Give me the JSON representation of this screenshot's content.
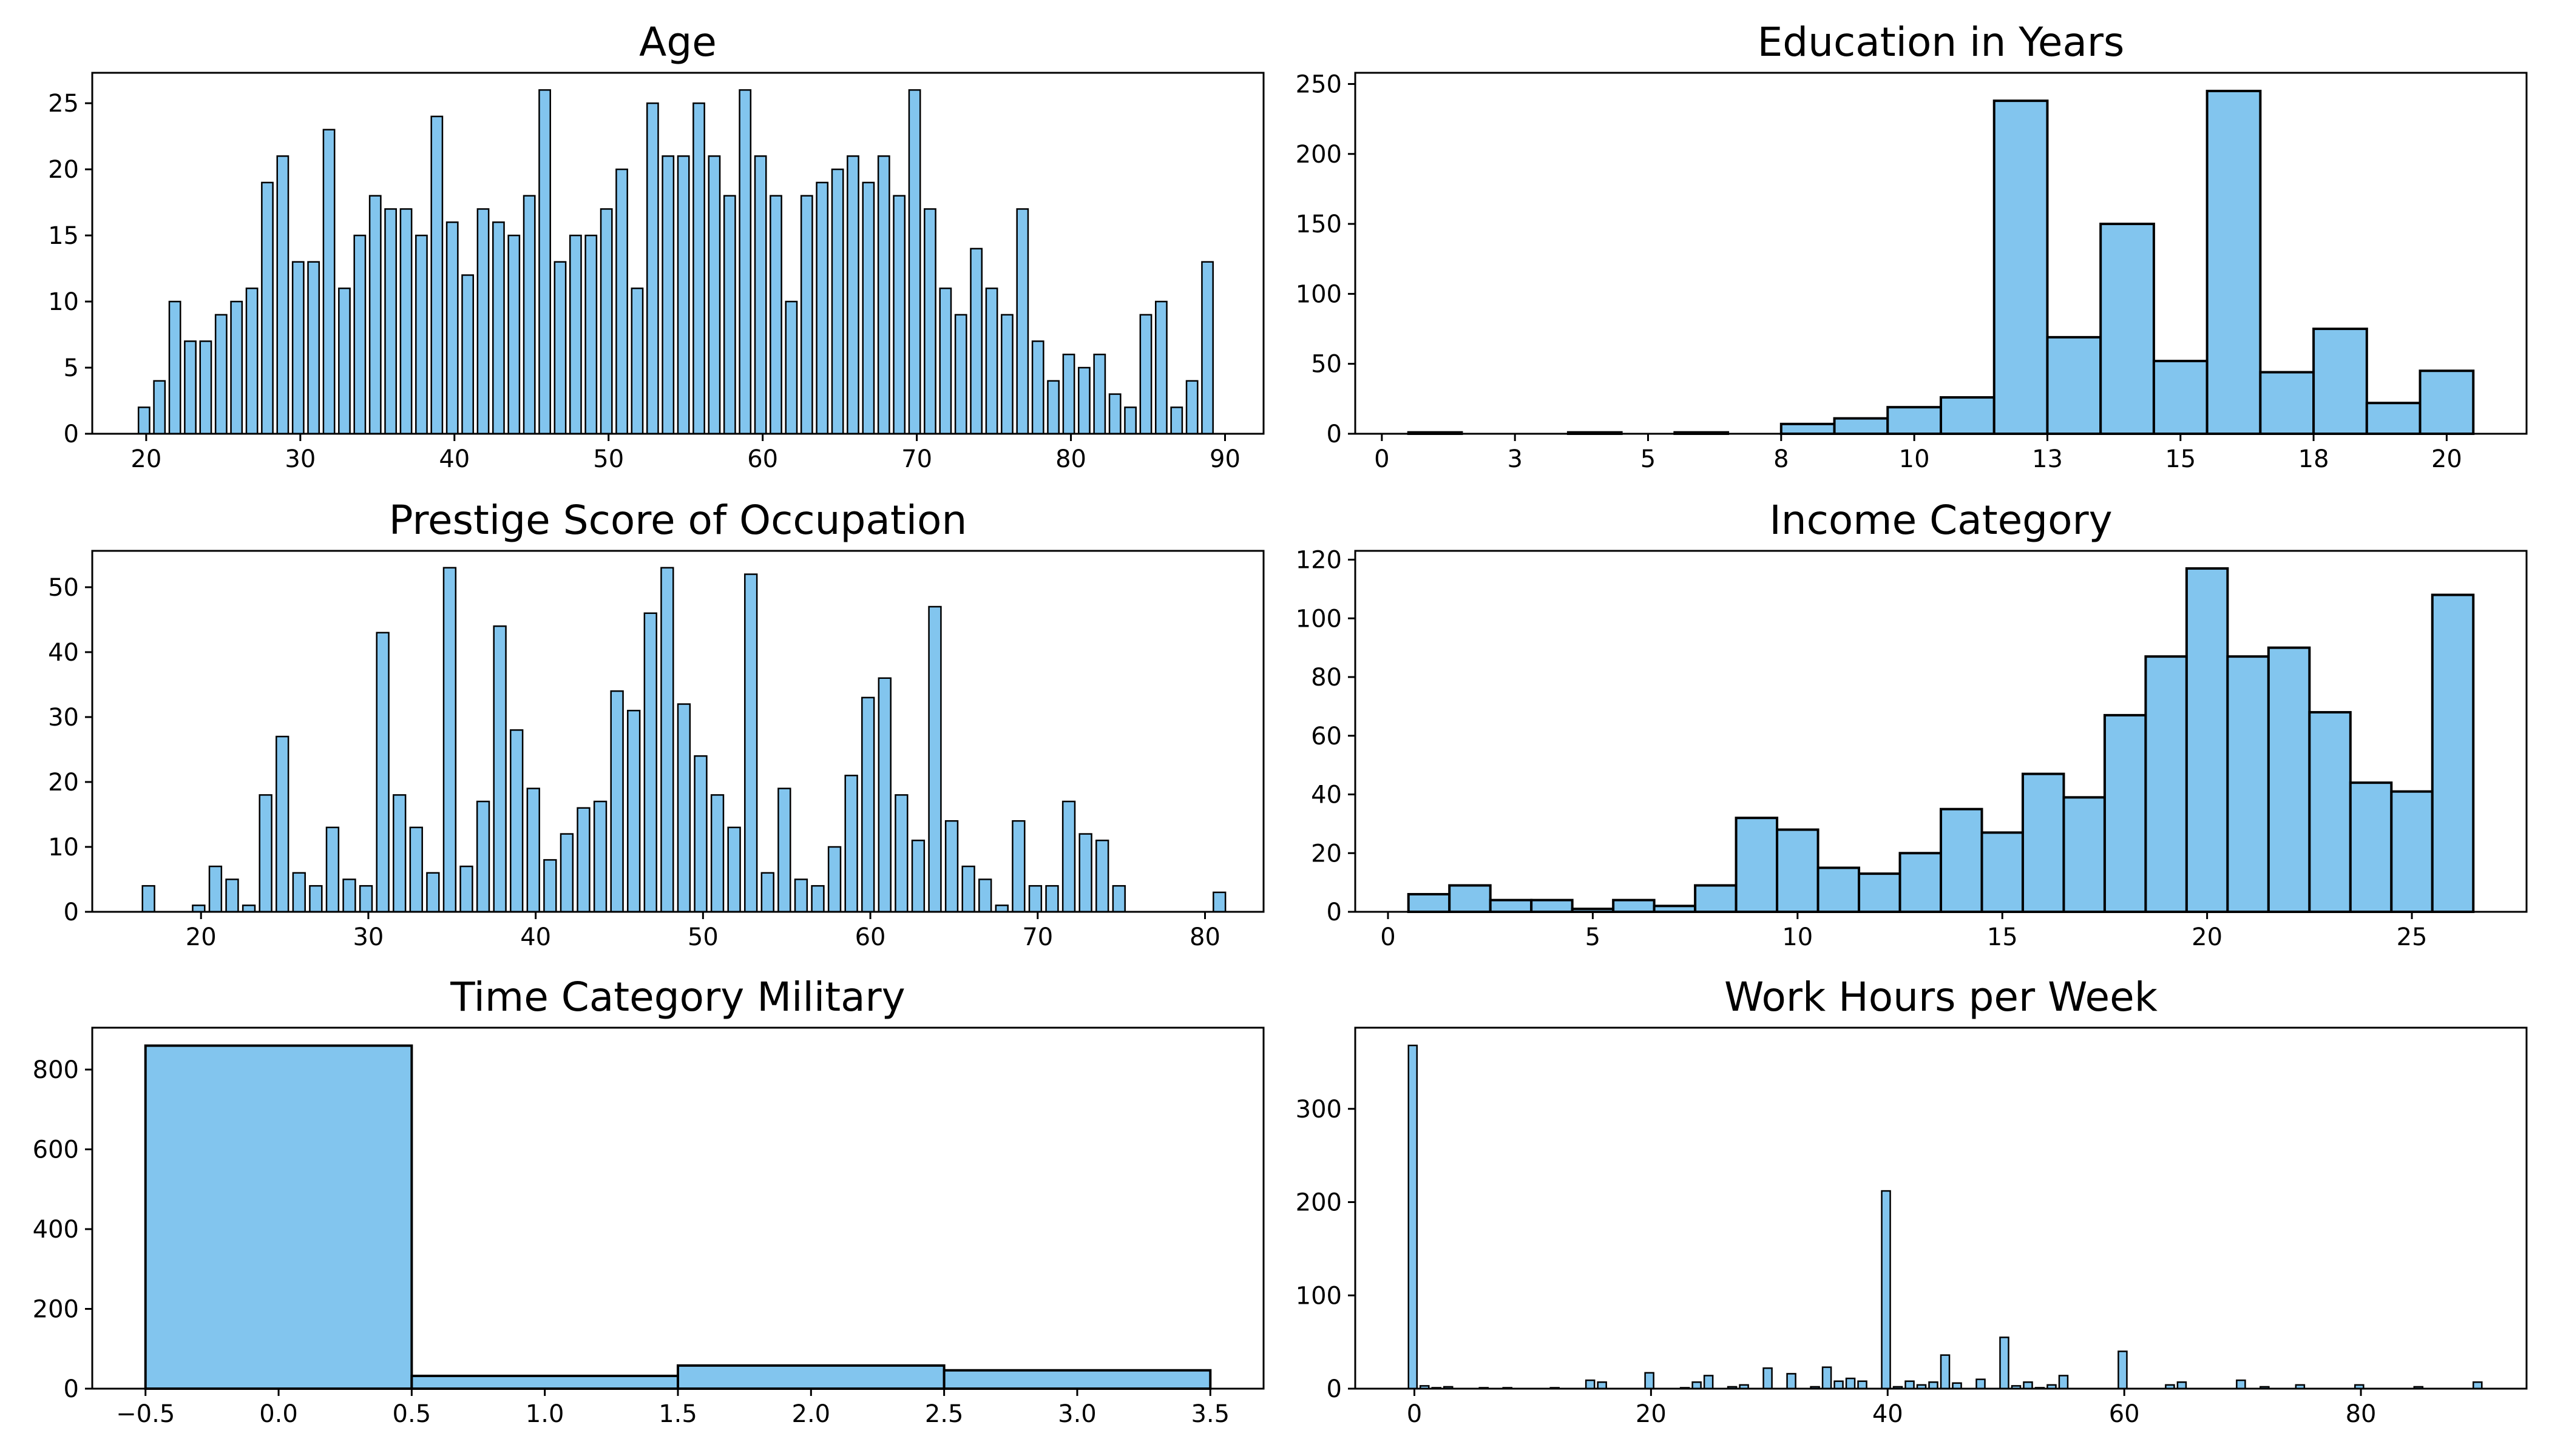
{
  "figure": {
    "bar_color": "#82C5EE",
    "edge_color": "#000000",
    "background": "#ffffff"
  },
  "chart_data": [
    {
      "type": "bar",
      "title": "Age",
      "xlim": [
        16.5,
        92.5
      ],
      "ylim": [
        0,
        27.3
      ],
      "xticks": [
        20,
        30,
        40,
        50,
        60,
        70,
        80,
        90
      ],
      "yticks": [
        0,
        5,
        10,
        15,
        20,
        25
      ],
      "bin_start": 19.5,
      "bin_width": 1,
      "values": [
        2,
        4,
        10,
        7,
        7,
        9,
        10,
        11,
        19,
        21,
        13,
        13,
        23,
        11,
        15,
        18,
        17,
        17,
        15,
        24,
        16,
        12,
        17,
        16,
        15,
        18,
        26,
        13,
        15,
        15,
        17,
        20,
        11,
        25,
        21,
        21,
        25,
        21,
        18,
        26,
        21,
        18,
        10,
        18,
        19,
        20,
        21,
        19,
        21,
        18,
        26,
        17,
        11,
        9,
        14,
        11,
        9,
        17,
        7,
        4,
        6,
        5,
        6,
        3,
        2,
        9,
        10,
        2,
        4,
        13
      ]
    },
    {
      "type": "bar",
      "title": "Education in Years",
      "xlim": [
        -0.5,
        21.5
      ],
      "ylim": [
        0,
        258
      ],
      "xticks": [
        0.0,
        2.5,
        5.0,
        7.5,
        10.0,
        12.5,
        15.0,
        17.5,
        20.0
      ],
      "yticks": [
        0,
        50,
        100,
        150,
        200,
        250
      ],
      "bin_start": 0.5,
      "bin_width": 1,
      "values": [
        1,
        0,
        0,
        1,
        0,
        1,
        0,
        7,
        11,
        19,
        26,
        238,
        69,
        150,
        52,
        245,
        44,
        75,
        22,
        45
      ]
    },
    {
      "type": "bar",
      "title": "Prestige Score of Occupation",
      "xlim": [
        13.5,
        83.5
      ],
      "ylim": [
        0,
        55.6
      ],
      "xticks": [
        20,
        30,
        40,
        50,
        60,
        70,
        80
      ],
      "yticks": [
        0,
        10,
        20,
        30,
        40,
        50
      ],
      "bin_start": 16.5,
      "bin_width": 1,
      "values": [
        4,
        0,
        0,
        1,
        7,
        5,
        1,
        18,
        27,
        6,
        4,
        13,
        5,
        4,
        43,
        18,
        13,
        6,
        53,
        7,
        17,
        44,
        28,
        19,
        8,
        12,
        16,
        17,
        34,
        31,
        46,
        53,
        32,
        24,
        18,
        13,
        52,
        6,
        19,
        5,
        4,
        10,
        21,
        33,
        36,
        18,
        11,
        47,
        14,
        7,
        5,
        1,
        14,
        4,
        4,
        17,
        12,
        11,
        4,
        0,
        0,
        0,
        0,
        0,
        3
      ]
    },
    {
      "type": "bar",
      "title": "Income Category",
      "xlim": [
        -0.8,
        27.8
      ],
      "ylim": [
        0,
        123
      ],
      "xticks": [
        0,
        5,
        10,
        15,
        20,
        25
      ],
      "yticks": [
        0,
        20,
        40,
        60,
        80,
        100,
        120
      ],
      "bin_start": 0.5,
      "bin_width": 1,
      "values": [
        6,
        9,
        4,
        4,
        1,
        4,
        2,
        9,
        32,
        28,
        15,
        13,
        20,
        35,
        27,
        47,
        39,
        67,
        87,
        117,
        87,
        90,
        68,
        44,
        41,
        108
      ]
    },
    {
      "type": "bar",
      "title": "Time Category Military",
      "xlim": [
        -0.7,
        3.7
      ],
      "ylim": [
        0,
        905
      ],
      "xticks": [
        -0.5,
        0.0,
        0.5,
        1.0,
        1.5,
        2.0,
        2.5,
        3.0,
        3.5
      ],
      "yticks": [
        0,
        200,
        400,
        600,
        800
      ],
      "bin_start": -0.5,
      "bin_width": 1,
      "values": [
        860,
        32,
        58,
        46
      ]
    },
    {
      "type": "bar",
      "title": "Work Hours per Week",
      "xlim": [
        -5,
        94
      ],
      "ylim": [
        0,
        387
      ],
      "xticks": [
        0,
        20,
        40,
        60,
        80
      ],
      "yticks": [
        0,
        100,
        200,
        300
      ],
      "bin_start": -0.5,
      "bin_width": 1,
      "values": [
        368,
        3,
        1,
        2,
        0,
        0,
        1,
        0,
        1,
        0,
        0,
        0,
        1,
        0,
        0,
        9,
        7,
        0,
        0,
        0,
        17,
        0,
        0,
        1,
        7,
        14,
        0,
        2,
        4,
        0,
        22,
        0,
        16,
        0,
        2,
        23,
        8,
        11,
        8,
        0,
        212,
        2,
        8,
        4,
        7,
        36,
        6,
        0,
        10,
        0,
        55,
        3,
        7,
        1,
        4,
        14,
        0,
        0,
        0,
        0,
        40,
        0,
        0,
        0,
        4,
        7,
        0,
        0,
        0,
        0,
        9,
        0,
        2,
        0,
        0,
        4,
        0,
        0,
        0,
        0,
        4,
        0,
        0,
        0,
        0,
        2,
        0,
        0,
        0,
        0,
        7
      ]
    }
  ]
}
